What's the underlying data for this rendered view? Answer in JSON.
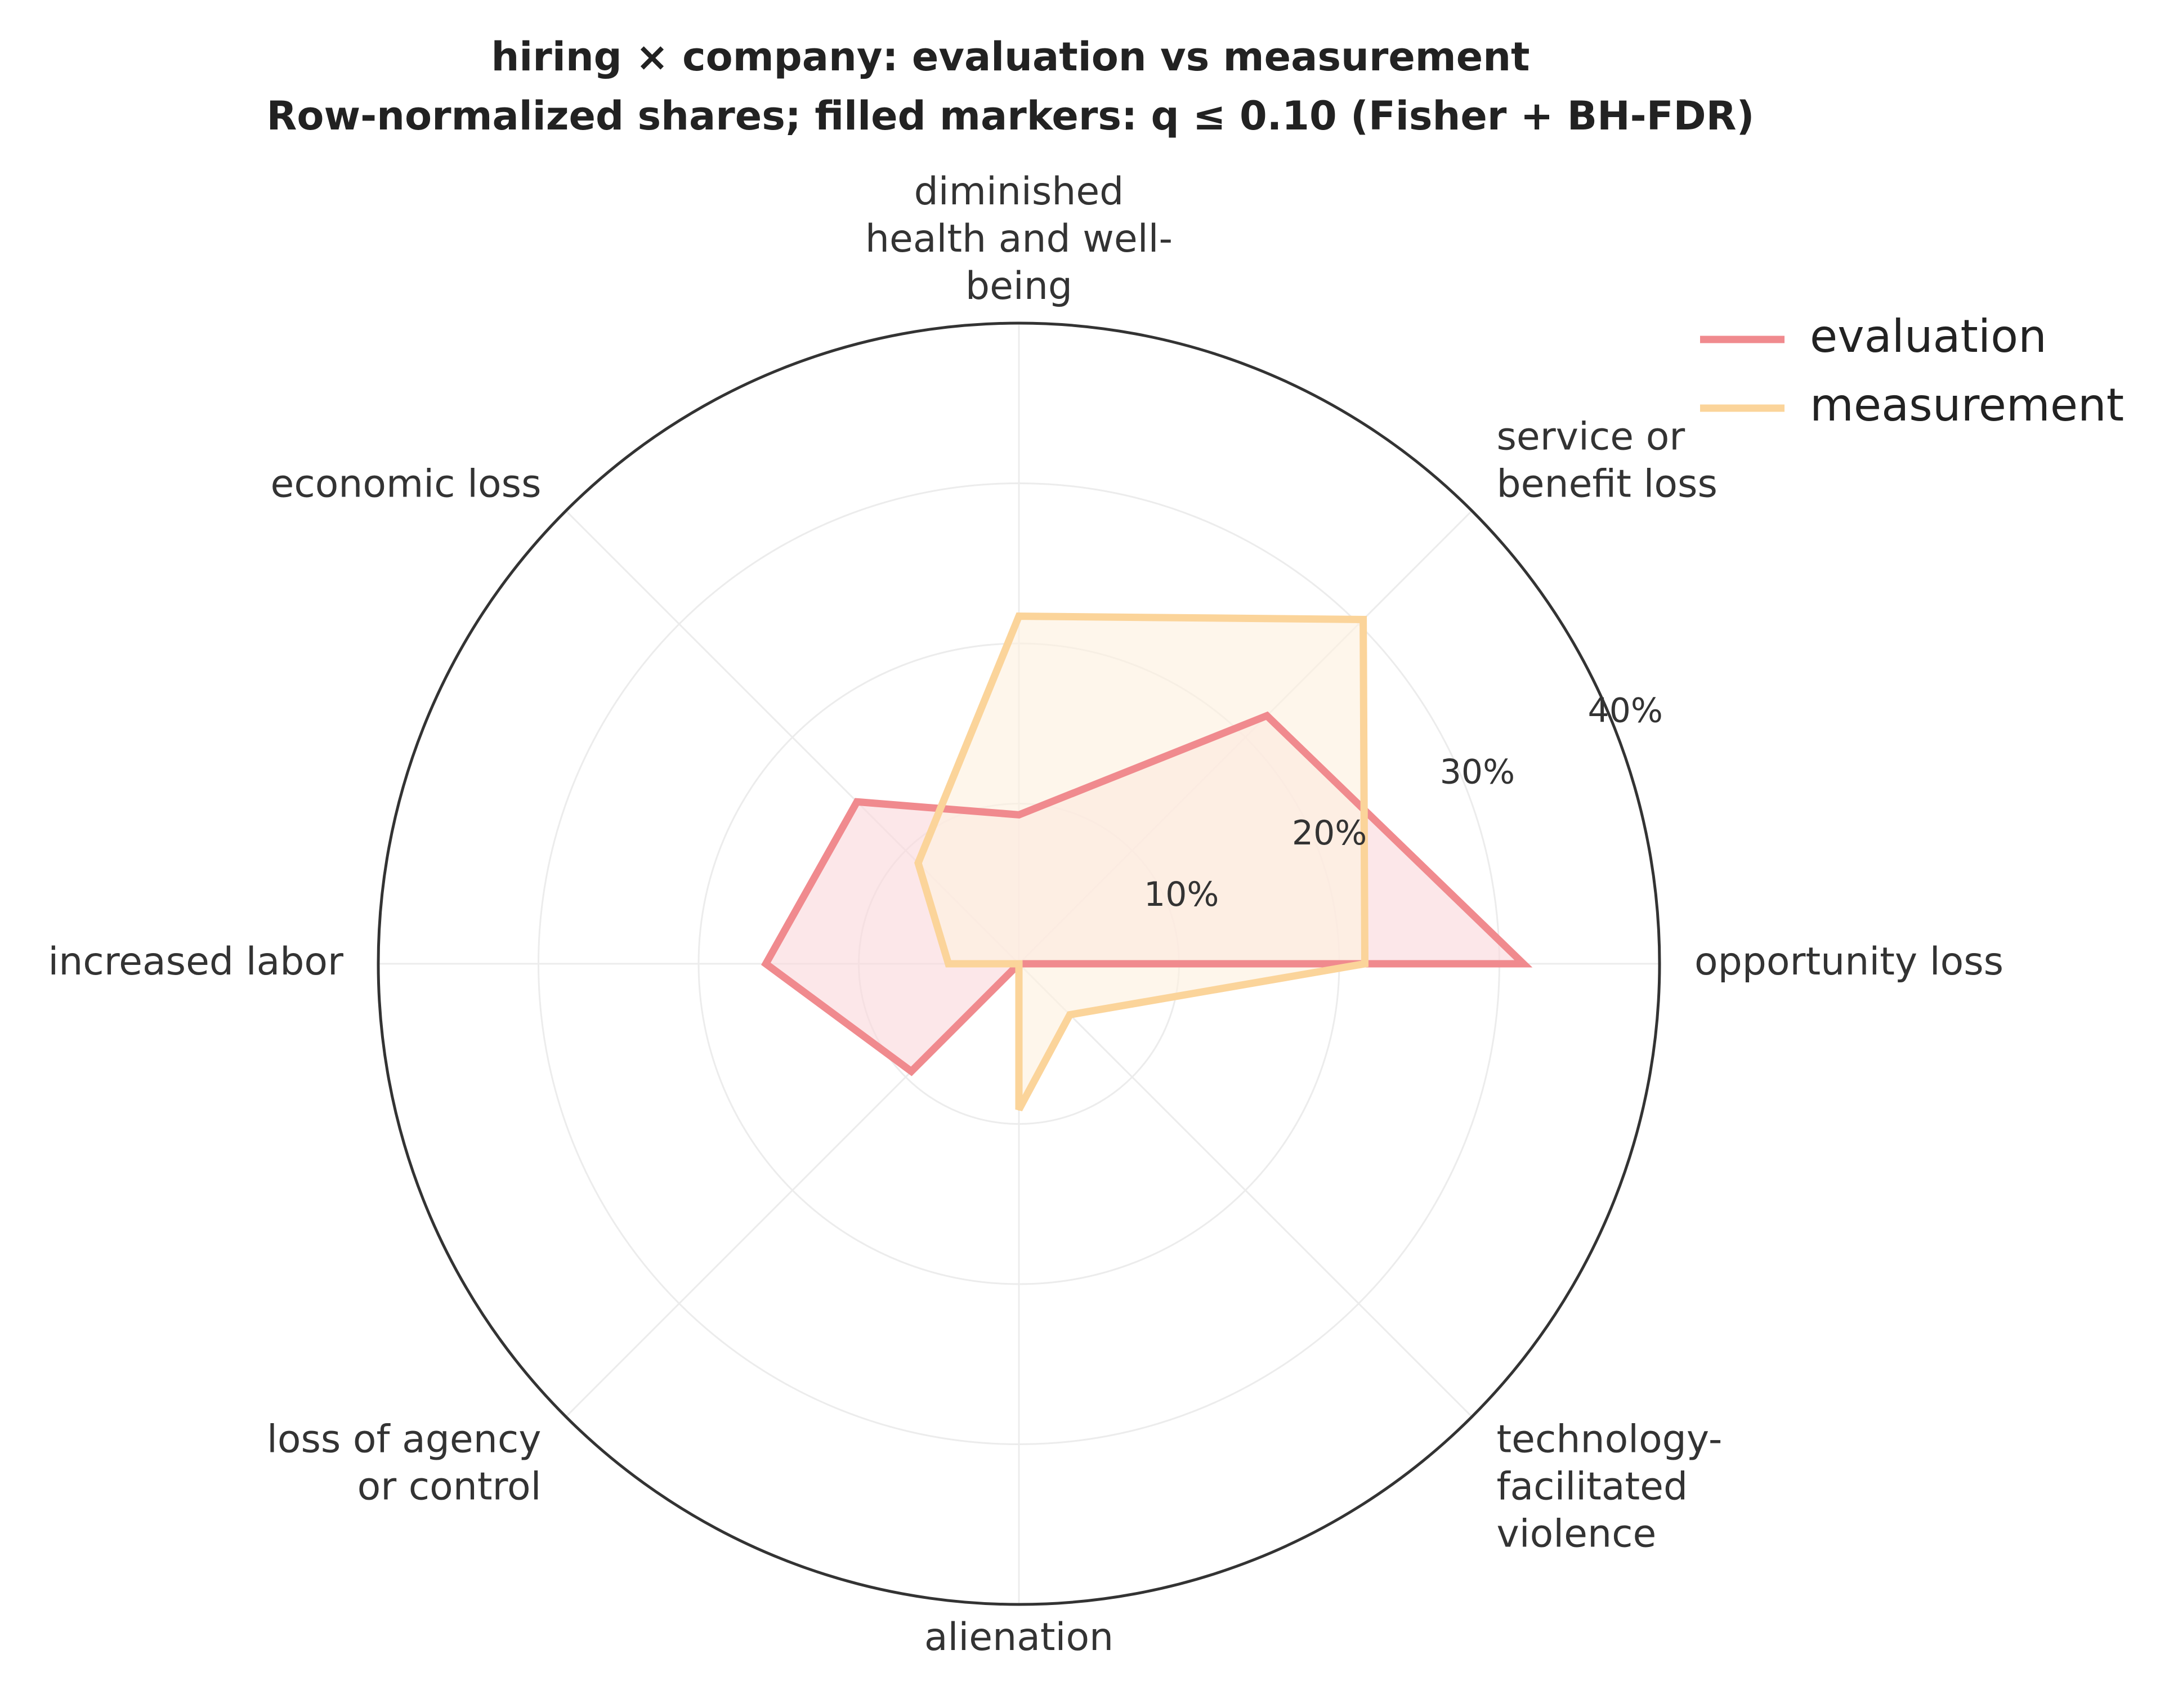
{
  "chart_data": {
    "type": "radar",
    "title": "hiring × company: evaluation vs measurement",
    "subtitle": "Row-normalized shares; filled markers: q ≤ 0.10 (Fisher + BH-FDR)",
    "categories": [
      "opportunity loss",
      "service or benefit loss",
      "diminished health and well-being",
      "economic loss",
      "increased labor",
      "loss of agency or control",
      "alienation",
      "technology-facilitated violence"
    ],
    "category_display": [
      [
        "opportunity loss"
      ],
      [
        "service or",
        "benefit loss"
      ],
      [
        "diminished",
        "health and well-",
        "being"
      ],
      [
        "economic loss"
      ],
      [
        "increased labor"
      ],
      [
        "loss of agency",
        "or control"
      ],
      [
        "alienation"
      ],
      [
        "technology-",
        "facilitated",
        "violence"
      ]
    ],
    "series": [
      {
        "name": "evaluation",
        "color": "#f08a8e",
        "fill": "#fadadd",
        "values": [
          31.5,
          21.9,
          9.3,
          14.3,
          15.8,
          9.5,
          0.0,
          0.0
        ]
      },
      {
        "name": "measurement",
        "color": "#fbd49a",
        "fill": "#fdf1e1",
        "values": [
          21.6,
          30.4,
          21.7,
          8.9,
          4.4,
          0.0,
          9.1,
          4.5
        ]
      }
    ],
    "r_ticks": [
      10,
      20,
      30,
      40
    ],
    "r_tick_labels": [
      "10%",
      "20%",
      "30%",
      "40%"
    ],
    "rlim": [
      0,
      40
    ],
    "grid": true,
    "legend_position": "top-right"
  }
}
